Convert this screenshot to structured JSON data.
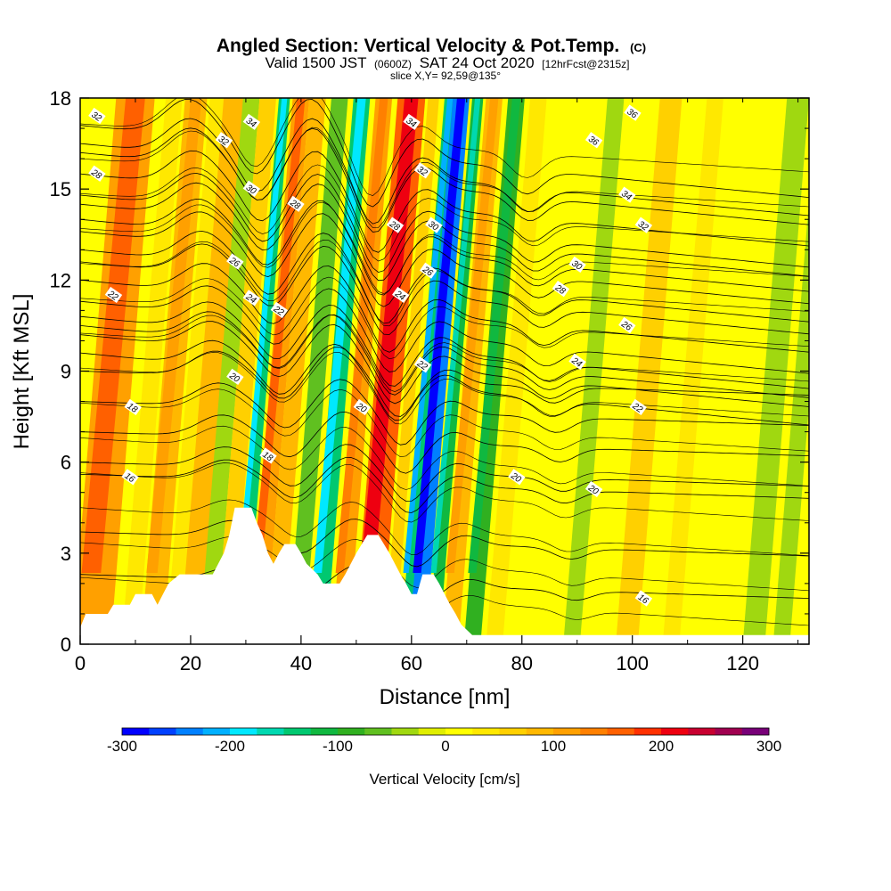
{
  "header": {
    "title": "Angled Section: Vertical Velocity & Pot.Temp.",
    "title_unit": "(C)",
    "valid_prefix": "Valid 1500 JST",
    "valid_zulu": "(0600Z)",
    "valid_date": "SAT 24 Oct 2020",
    "forecast": "[12hrFcst@2315z]",
    "slice": "slice X,Y= 92,59@135°"
  },
  "chart_data": {
    "type": "heatmap",
    "xlabel": "Distance [nm]",
    "ylabel": "Height [Kft MSL]",
    "xlim": [
      0,
      132
    ],
    "ylim": [
      0,
      18
    ],
    "x_ticks": [
      0,
      20,
      40,
      60,
      80,
      100,
      120
    ],
    "y_ticks": [
      0,
      3,
      6,
      9,
      12,
      15,
      18
    ],
    "colorbar": {
      "label": "Vertical Velocity [cm/s]",
      "range": [
        -300,
        300
      ],
      "tick_values": [
        -300,
        -200,
        -100,
        0,
        100,
        200,
        300
      ],
      "tick_labels": [
        "-300",
        "-200",
        "-100",
        "0",
        "100",
        "200",
        "300"
      ],
      "colors": [
        "#0000ff",
        "#0040ff",
        "#0080ff",
        "#00b0ff",
        "#00e8ff",
        "#00d8b0",
        "#00c870",
        "#10b840",
        "#30b020",
        "#60c020",
        "#a0d810",
        "#e0ee00",
        "#ffff00",
        "#ffe800",
        "#ffd000",
        "#ffb800",
        "#ffa000",
        "#ff8000",
        "#ff6000",
        "#ff3000",
        "#ee0010",
        "#c80030",
        "#a00050",
        "#780078"
      ]
    },
    "velocity_bands": [
      {
        "x": 3,
        "w": 7,
        "v": 115
      },
      {
        "x": 10,
        "w": 3,
        "v": 40
      },
      {
        "x": 14,
        "w": 4,
        "v": 90
      },
      {
        "x": 18,
        "w": 3,
        "v": 30
      },
      {
        "x": 21,
        "w": 4,
        "v": 75
      },
      {
        "x": 24,
        "w": 3,
        "v": -40
      },
      {
        "x": 27,
        "w": 3,
        "v": 60
      },
      {
        "x": 30,
        "w": 2,
        "v": -140
      },
      {
        "x": 33,
        "w": 3,
        "v": 120
      },
      {
        "x": 36,
        "w": 3,
        "v": 80
      },
      {
        "x": 40,
        "w": 3,
        "v": -60
      },
      {
        "x": 44,
        "w": 3,
        "v": -130
      },
      {
        "x": 48,
        "w": 3,
        "v": 100
      },
      {
        "x": 53,
        "w": 5,
        "v": 160
      },
      {
        "x": 57,
        "w": 2,
        "v": 60
      },
      {
        "x": 60,
        "w": 2,
        "v": -150
      },
      {
        "x": 62,
        "w": 3,
        "v": -250
      },
      {
        "x": 65,
        "w": 2,
        "v": -120
      },
      {
        "x": 68,
        "w": 3,
        "v": 90
      },
      {
        "x": 72,
        "w": 3,
        "v": -90
      },
      {
        "x": 76,
        "w": 3,
        "v": 30
      },
      {
        "x": 85,
        "w": 5,
        "v": 10
      },
      {
        "x": 90,
        "w": 3,
        "v": -50
      },
      {
        "x": 100,
        "w": 4,
        "v": 60
      },
      {
        "x": 108,
        "w": 3,
        "v": 30
      },
      {
        "x": 115,
        "w": 4,
        "v": 15
      },
      {
        "x": 123,
        "w": 4,
        "v": -40
      },
      {
        "x": 128,
        "w": 3,
        "v": -30
      }
    ],
    "terrain": [
      [
        0,
        0.55
      ],
      [
        1,
        1.0
      ],
      [
        5,
        1.0
      ],
      [
        6,
        1.3
      ],
      [
        9,
        1.3
      ],
      [
        10,
        1.65
      ],
      [
        13,
        1.65
      ],
      [
        14,
        1.3
      ],
      [
        15,
        1.65
      ],
      [
        16,
        2.0
      ],
      [
        18,
        2.3
      ],
      [
        24,
        2.3
      ],
      [
        25,
        2.65
      ],
      [
        26,
        3.0
      ],
      [
        27,
        3.6
      ],
      [
        28,
        4.5
      ],
      [
        31,
        4.5
      ],
      [
        32,
        4.0
      ],
      [
        33,
        3.6
      ],
      [
        34,
        3.0
      ],
      [
        35,
        2.65
      ],
      [
        36,
        3.0
      ],
      [
        37,
        3.3
      ],
      [
        39,
        3.3
      ],
      [
        40,
        3.0
      ],
      [
        41,
        2.65
      ],
      [
        43,
        2.3
      ],
      [
        44,
        2.0
      ],
      [
        47,
        2.0
      ],
      [
        48,
        2.3
      ],
      [
        49,
        2.65
      ],
      [
        50,
        3.0
      ],
      [
        51,
        3.3
      ],
      [
        52,
        3.6
      ],
      [
        54,
        3.6
      ],
      [
        55,
        3.3
      ],
      [
        56,
        3.0
      ],
      [
        57,
        2.65
      ],
      [
        58,
        2.3
      ],
      [
        59,
        2.0
      ],
      [
        60,
        1.65
      ],
      [
        61,
        1.65
      ],
      [
        62,
        2.3
      ],
      [
        64,
        2.3
      ],
      [
        65,
        2.0
      ],
      [
        66,
        1.65
      ],
      [
        67,
        1.3
      ],
      [
        68,
        1.0
      ],
      [
        69,
        0.65
      ],
      [
        71,
        0.3
      ],
      [
        132,
        0.3
      ]
    ],
    "isentropes": [
      {
        "value": 16,
        "label": "16",
        "base": 3.7,
        "lx": 9,
        "ly": 5.5
      },
      {
        "value": 16,
        "label": "16",
        "base": 2.3,
        "lx": 102,
        "ly": 1.5
      },
      {
        "value": 18,
        "label": "18",
        "base": 5.6,
        "lx": 9.5,
        "ly": 7.8
      },
      {
        "value": 18,
        "label": "18",
        "base": 5.6,
        "lx": 34,
        "ly": 6.2
      },
      {
        "value": 20,
        "label": "20",
        "base": 7.0,
        "lx": 28,
        "ly": 8.8
      },
      {
        "value": 20,
        "label": "20",
        "base": 7.0,
        "lx": 51,
        "ly": 7.8
      },
      {
        "value": 20,
        "label": "20",
        "base": 6.0,
        "lx": 79,
        "ly": 5.5
      },
      {
        "value": 20,
        "label": "20",
        "base": 6.0,
        "lx": 93,
        "ly": 5.1
      },
      {
        "value": 22,
        "label": "22",
        "base": 10.2,
        "lx": 6,
        "ly": 11.5
      },
      {
        "value": 22,
        "label": "22",
        "base": 9.0,
        "lx": 36,
        "ly": 11.0
      },
      {
        "value": 22,
        "label": "22",
        "base": 9.0,
        "lx": 62,
        "ly": 9.2
      },
      {
        "value": 22,
        "label": "22",
        "base": 8.0,
        "lx": 101,
        "ly": 7.8
      },
      {
        "value": 24,
        "label": "24",
        "base": 10.8,
        "lx": 31,
        "ly": 11.4
      },
      {
        "value": 24,
        "label": "24",
        "base": 10.8,
        "lx": 58,
        "ly": 11.5
      },
      {
        "value": 24,
        "label": "24",
        "base": 9.6,
        "lx": 90,
        "ly": 9.3
      },
      {
        "value": 26,
        "label": "26",
        "base": 12.0,
        "lx": 28,
        "ly": 12.6
      },
      {
        "value": 26,
        "label": "26",
        "base": 12.0,
        "lx": 63,
        "ly": 12.3
      },
      {
        "value": 26,
        "label": "26",
        "base": 10.5,
        "lx": 99,
        "ly": 10.5
      },
      {
        "value": 28,
        "label": "28",
        "base": 14.5,
        "lx": 3,
        "ly": 15.5
      },
      {
        "value": 28,
        "label": "28",
        "base": 13.0,
        "lx": 39,
        "ly": 14.5
      },
      {
        "value": 28,
        "label": "28",
        "base": 13.0,
        "lx": 57,
        "ly": 13.8
      },
      {
        "value": 28,
        "label": "28",
        "base": 11.3,
        "lx": 87,
        "ly": 11.7
      },
      {
        "value": 30,
        "label": "30",
        "base": 14.0,
        "lx": 31,
        "ly": 15.0
      },
      {
        "value": 30,
        "label": "30",
        "base": 14.0,
        "lx": 64,
        "ly": 13.8
      },
      {
        "value": 30,
        "label": "30",
        "base": 12.6,
        "lx": 90,
        "ly": 12.5
      },
      {
        "value": 32,
        "label": "32",
        "base": 16.5,
        "lx": 3,
        "ly": 17.4
      },
      {
        "value": 32,
        "label": "32",
        "base": 15.5,
        "lx": 26,
        "ly": 16.6
      },
      {
        "value": 32,
        "label": "32",
        "base": 15.5,
        "lx": 62,
        "ly": 15.6
      },
      {
        "value": 32,
        "label": "32",
        "base": 13.6,
        "lx": 102,
        "ly": 13.8
      },
      {
        "value": 34,
        "label": "34",
        "base": 16.5,
        "lx": 31,
        "ly": 17.2
      },
      {
        "value": 34,
        "label": "34",
        "base": 16.5,
        "lx": 60,
        "ly": 17.2
      },
      {
        "value": 34,
        "label": "34",
        "base": 14.8,
        "lx": 99,
        "ly": 14.8
      },
      {
        "value": 36,
        "label": "36",
        "base": 16.2,
        "lx": 93,
        "ly": 16.6
      },
      {
        "value": 36,
        "label": "36",
        "base": 17.1,
        "lx": 100,
        "ly": 17.5
      }
    ]
  }
}
